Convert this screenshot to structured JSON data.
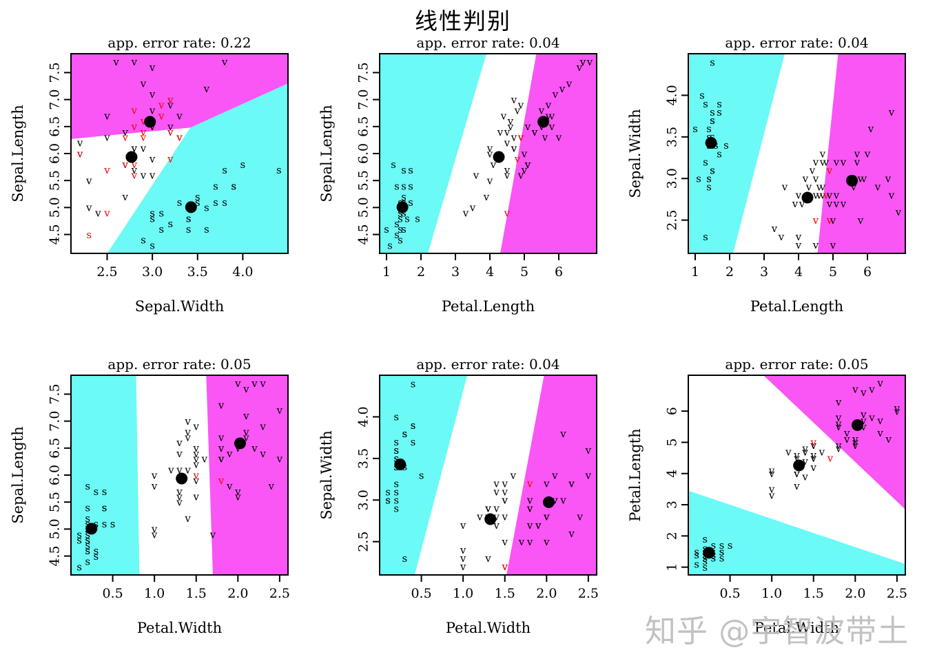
{
  "title": "线性判别",
  "watermark": "知乎 @宇智波带土",
  "colors": {
    "region_setosa": "#6BFAF6",
    "region_versicolor": "#FFFFFF",
    "region_virginica": "#F956F5",
    "correct_point": "#000000",
    "misclassified_point": "#FF0000",
    "mean_dot": "#000000",
    "axis": "#000000",
    "watermark": "#BDBDBD"
  },
  "chart_data": {
    "type": "scatter",
    "suptitle": "线性判别",
    "method": "partition plot (linear discriminant)",
    "features": [
      "Sepal.Length",
      "Sepal.Width",
      "Petal.Length",
      "Petal.Width"
    ],
    "classes": [
      {
        "code": "s",
        "letter": "s",
        "region": "cyan"
      },
      {
        "code": "c",
        "letter": "v",
        "region": "white"
      },
      {
        "code": "g",
        "letter": "v",
        "region": "magenta"
      }
    ],
    "region_class": {
      "cyan": "s",
      "white": "c",
      "magenta": "g"
    },
    "class_means": {
      "s": [
        5.006,
        3.428,
        1.462,
        0.246
      ],
      "c": [
        5.936,
        2.77,
        4.26,
        1.326
      ],
      "g": [
        6.588,
        2.974,
        5.552,
        2.026
      ]
    },
    "points": [
      [
        5.1,
        3.5,
        1.4,
        0.2,
        "s"
      ],
      [
        4.9,
        3.0,
        1.4,
        0.2,
        "s"
      ],
      [
        4.7,
        3.2,
        1.3,
        0.2,
        "s"
      ],
      [
        4.6,
        3.1,
        1.5,
        0.2,
        "s"
      ],
      [
        5.0,
        3.6,
        1.4,
        0.2,
        "s"
      ],
      [
        5.4,
        3.9,
        1.7,
        0.4,
        "s"
      ],
      [
        4.6,
        3.4,
        1.4,
        0.3,
        "s"
      ],
      [
        5.0,
        3.4,
        1.5,
        0.2,
        "s"
      ],
      [
        4.4,
        2.9,
        1.4,
        0.2,
        "s"
      ],
      [
        4.9,
        3.1,
        1.5,
        0.1,
        "s"
      ],
      [
        5.4,
        3.7,
        1.5,
        0.2,
        "s"
      ],
      [
        4.8,
        3.4,
        1.6,
        0.2,
        "s"
      ],
      [
        4.8,
        3.0,
        1.4,
        0.1,
        "s"
      ],
      [
        4.3,
        3.0,
        1.1,
        0.1,
        "s"
      ],
      [
        5.8,
        4.0,
        1.2,
        0.2,
        "s"
      ],
      [
        5.7,
        4.4,
        1.5,
        0.4,
        "s"
      ],
      [
        5.4,
        3.9,
        1.3,
        0.4,
        "s"
      ],
      [
        5.7,
        3.8,
        1.7,
        0.3,
        "s"
      ],
      [
        5.1,
        3.8,
        1.5,
        0.3,
        "s"
      ],
      [
        5.1,
        3.7,
        1.5,
        0.4,
        "s"
      ],
      [
        4.6,
        3.6,
        1.0,
        0.2,
        "s"
      ],
      [
        5.1,
        3.3,
        1.7,
        0.5,
        "s"
      ],
      [
        4.8,
        3.4,
        1.9,
        0.2,
        "s"
      ],
      [
        4.5,
        2.3,
        1.3,
        0.3,
        "s"
      ],
      [
        5.2,
        3.5,
        1.5,
        0.2,
        "s"
      ],
      [
        7.0,
        3.2,
        4.7,
        1.4,
        "c"
      ],
      [
        6.4,
        3.2,
        4.5,
        1.5,
        "c"
      ],
      [
        6.9,
        3.1,
        4.9,
        1.5,
        "c"
      ],
      [
        5.5,
        2.3,
        4.0,
        1.3,
        "c"
      ],
      [
        6.5,
        2.8,
        4.6,
        1.5,
        "c"
      ],
      [
        5.7,
        2.8,
        4.5,
        1.3,
        "c"
      ],
      [
        6.3,
        3.3,
        4.7,
        1.6,
        "c"
      ],
      [
        4.9,
        2.4,
        3.3,
        1.0,
        "c"
      ],
      [
        6.6,
        2.9,
        4.6,
        1.3,
        "c"
      ],
      [
        5.2,
        2.7,
        3.9,
        1.4,
        "c"
      ],
      [
        5.9,
        3.0,
        4.2,
        1.5,
        "c"
      ],
      [
        6.0,
        2.2,
        4.0,
        1.0,
        "c"
      ],
      [
        6.1,
        2.9,
        4.7,
        1.4,
        "c"
      ],
      [
        5.6,
        2.9,
        3.6,
        1.3,
        "c"
      ],
      [
        6.7,
        3.1,
        4.4,
        1.4,
        "c"
      ],
      [
        5.6,
        3.0,
        4.5,
        1.5,
        "c"
      ],
      [
        5.8,
        2.7,
        4.1,
        1.0,
        "c"
      ],
      [
        6.2,
        2.2,
        4.5,
        1.5,
        "c"
      ],
      [
        5.0,
        2.3,
        3.5,
        1.0,
        "c"
      ],
      [
        5.9,
        3.2,
        4.8,
        1.8,
        "c"
      ],
      [
        6.1,
        2.8,
        4.0,
        1.3,
        "c"
      ],
      [
        6.3,
        2.5,
        4.9,
        1.5,
        "c"
      ],
      [
        6.1,
        2.8,
        4.7,
        1.2,
        "c"
      ],
      [
        6.4,
        2.9,
        4.3,
        1.3,
        "c"
      ],
      [
        6.8,
        2.8,
        4.8,
        1.4,
        "c"
      ],
      [
        6.3,
        3.3,
        6.0,
        2.5,
        "g"
      ],
      [
        5.8,
        2.7,
        5.1,
        1.9,
        "g"
      ],
      [
        7.1,
        3.0,
        5.9,
        2.1,
        "g"
      ],
      [
        6.3,
        2.9,
        5.6,
        1.8,
        "g"
      ],
      [
        6.5,
        3.0,
        5.8,
        2.2,
        "g"
      ],
      [
        7.6,
        3.0,
        6.6,
        2.1,
        "g"
      ],
      [
        4.9,
        2.5,
        4.5,
        1.7,
        "g"
      ],
      [
        7.3,
        2.9,
        6.3,
        1.8,
        "g"
      ],
      [
        6.7,
        2.5,
        5.8,
        1.8,
        "g"
      ],
      [
        7.2,
        3.6,
        6.1,
        2.5,
        "g"
      ],
      [
        6.5,
        3.2,
        5.1,
        2.0,
        "g"
      ],
      [
        6.4,
        2.7,
        5.3,
        1.9,
        "g"
      ],
      [
        6.8,
        3.0,
        5.5,
        2.1,
        "g"
      ],
      [
        5.7,
        2.5,
        5.0,
        2.0,
        "g"
      ],
      [
        5.8,
        2.8,
        5.1,
        2.4,
        "g"
      ],
      [
        6.4,
        3.2,
        5.3,
        2.3,
        "g"
      ],
      [
        6.5,
        3.0,
        5.5,
        1.8,
        "g"
      ],
      [
        7.7,
        3.8,
        6.7,
        2.2,
        "g"
      ],
      [
        7.7,
        2.6,
        6.9,
        2.3,
        "g"
      ],
      [
        6.0,
        2.2,
        5.0,
        1.5,
        "g"
      ],
      [
        6.9,
        3.2,
        5.7,
        2.3,
        "g"
      ],
      [
        5.6,
        2.8,
        4.9,
        2.0,
        "g"
      ],
      [
        7.7,
        2.8,
        6.7,
        2.0,
        "g"
      ],
      [
        6.3,
        2.7,
        4.9,
        1.8,
        "g"
      ],
      [
        6.7,
        3.3,
        5.7,
        2.1,
        "g"
      ]
    ],
    "panels": [
      {
        "title": "app. error rate: 0.22",
        "xlabel": "Sepal.Width",
        "ylabel": "Sepal.Length",
        "xlim": [
          2.1,
          4.5
        ],
        "ylim": [
          4.15,
          7.85
        ],
        "xticks": [
          2.5,
          3.0,
          3.5,
          4.0
        ],
        "xtick_labels": [
          "2.5",
          "3.0",
          "3.5",
          "4.0"
        ],
        "yticks": [
          4.5,
          5.0,
          5.5,
          6.0,
          6.5,
          7.0,
          7.5
        ],
        "ytick_labels": [
          "4.5",
          "5.0",
          "5.5",
          "6.0",
          "6.5",
          "7.0",
          "7.5"
        ],
        "regions": {
          "cyan": [
            [
              2.5,
              4.15
            ],
            [
              4.5,
              4.15
            ],
            [
              4.5,
              7.3
            ],
            [
              3.42,
              6.48
            ]
          ],
          "magenta": [
            [
              2.1,
              6.27
            ],
            [
              3.42,
              6.48
            ],
            [
              4.5,
              7.3
            ],
            [
              4.5,
              7.85
            ],
            [
              2.1,
              7.85
            ]
          ]
        }
      },
      {
        "title": "app. error rate: 0.04",
        "xlabel": "Petal.Length",
        "ylabel": "Sepal.Length",
        "xlim": [
          0.8,
          7.1
        ],
        "ylim": [
          4.15,
          7.85
        ],
        "xticks": [
          1,
          2,
          3,
          4,
          5,
          6
        ],
        "xtick_labels": [
          "1",
          "2",
          "3",
          "4",
          "5",
          "6"
        ],
        "yticks": [
          4.5,
          5.0,
          5.5,
          6.0,
          6.5,
          7.0,
          7.5
        ],
        "ytick_labels": [
          "4.5",
          "5.0",
          "5.5",
          "6.0",
          "6.5",
          "7.0",
          "7.5"
        ],
        "regions": {
          "cyan": [
            [
              0.8,
              4.15
            ],
            [
              2.2,
              4.15
            ],
            [
              3.9,
              7.85
            ],
            [
              0.8,
              7.85
            ]
          ],
          "magenta": [
            [
              4.3,
              4.15
            ],
            [
              7.1,
              4.15
            ],
            [
              7.1,
              7.85
            ],
            [
              5.35,
              7.85
            ]
          ]
        }
      },
      {
        "title": "app. error rate: 0.04",
        "xlabel": "Petal.Length",
        "ylabel": "Sepal.Width",
        "xlim": [
          0.8,
          7.1
        ],
        "ylim": [
          2.1,
          4.5
        ],
        "xticks": [
          1,
          2,
          3,
          4,
          5,
          6
        ],
        "xtick_labels": [
          "1",
          "2",
          "3",
          "4",
          "5",
          "6"
        ],
        "yticks": [
          2.5,
          3.0,
          3.5,
          4.0
        ],
        "ytick_labels": [
          "2.5",
          "3.0",
          "3.5",
          "4.0"
        ],
        "regions": {
          "cyan": [
            [
              0.8,
              2.1
            ],
            [
              2.1,
              2.1
            ],
            [
              3.6,
              4.5
            ],
            [
              0.8,
              4.5
            ]
          ],
          "magenta": [
            [
              4.55,
              2.1
            ],
            [
              7.1,
              2.1
            ],
            [
              7.1,
              4.5
            ],
            [
              5.15,
              4.5
            ]
          ]
        }
      },
      {
        "title": "app. error rate: 0.05",
        "xlabel": "Petal.Width",
        "ylabel": "Sepal.Length",
        "xlim": [
          0.0,
          2.6
        ],
        "ylim": [
          4.15,
          7.85
        ],
        "xticks": [
          0.5,
          1.0,
          1.5,
          2.0,
          2.5
        ],
        "xtick_labels": [
          "0.5",
          "1.0",
          "1.5",
          "2.0",
          "2.5"
        ],
        "yticks": [
          4.5,
          5.0,
          5.5,
          6.0,
          6.5,
          7.0,
          7.5
        ],
        "ytick_labels": [
          "4.5",
          "5.0",
          "5.5",
          "6.0",
          "6.5",
          "7.0",
          "7.5"
        ],
        "regions": {
          "cyan": [
            [
              0.0,
              4.15
            ],
            [
              0.82,
              4.15
            ],
            [
              0.78,
              7.85
            ],
            [
              0.0,
              7.85
            ]
          ],
          "magenta": [
            [
              1.7,
              4.15
            ],
            [
              2.6,
              4.15
            ],
            [
              2.6,
              7.85
            ],
            [
              1.62,
              7.85
            ]
          ]
        }
      },
      {
        "title": "app. error rate: 0.04",
        "xlabel": "Petal.Width",
        "ylabel": "Sepal.Width",
        "xlim": [
          0.0,
          2.6
        ],
        "ylim": [
          2.1,
          4.5
        ],
        "xticks": [
          0.5,
          1.0,
          1.5,
          2.0,
          2.5
        ],
        "xtick_labels": [
          "0.5",
          "1.0",
          "1.5",
          "2.0",
          "2.5"
        ],
        "yticks": [
          2.5,
          3.0,
          3.5,
          4.0
        ],
        "ytick_labels": [
          "2.5",
          "3.0",
          "3.5",
          "4.0"
        ],
        "regions": {
          "cyan": [
            [
              0.0,
              2.1
            ],
            [
              0.42,
              2.1
            ],
            [
              1.05,
              4.5
            ],
            [
              0.0,
              4.5
            ]
          ],
          "magenta": [
            [
              1.52,
              2.1
            ],
            [
              2.6,
              2.1
            ],
            [
              2.6,
              4.5
            ],
            [
              1.97,
              4.5
            ]
          ]
        }
      },
      {
        "title": "app. error rate: 0.05",
        "xlabel": "Petal.Width",
        "ylabel": "Petal.Length",
        "xlim": [
          0.0,
          2.6
        ],
        "ylim": [
          0.75,
          7.15
        ],
        "xticks": [
          0.5,
          1.0,
          1.5,
          2.0,
          2.5
        ],
        "xtick_labels": [
          "0.5",
          "1.0",
          "1.5",
          "2.0",
          "2.5"
        ],
        "yticks": [
          1,
          2,
          3,
          4,
          5,
          6
        ],
        "ytick_labels": [
          "1",
          "2",
          "3",
          "4",
          "5",
          "6"
        ],
        "regions": {
          "cyan": [
            [
              0.0,
              0.75
            ],
            [
              2.6,
              0.75
            ],
            [
              2.6,
              1.1
            ],
            [
              0.0,
              3.45
            ]
          ],
          "magenta": [
            [
              0.9,
              7.15
            ],
            [
              2.6,
              7.15
            ],
            [
              2.6,
              2.85
            ]
          ]
        }
      }
    ]
  }
}
